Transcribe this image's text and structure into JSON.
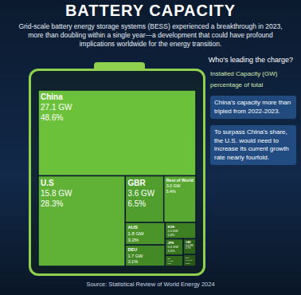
{
  "chart_data": {
    "type": "treemap",
    "title": "BATTERY CAPACITY",
    "subtitle": "Grid-scale battery energy storage systems (BESS) experienced a breakthrough in 2023, more than doubling within a single year—a development that could have profound implications worldwide for the energy transition.",
    "question": "Who's leading the charge?",
    "categories": [
      "China",
      "U.S",
      "GBR",
      "Rest of World",
      "AUS",
      "DEU",
      "KOR",
      "JPN",
      "IRL",
      "CAN",
      "ZAF"
    ],
    "values": [
      27.1,
      15.8,
      3.6,
      3.0,
      1.8,
      1.7,
      1.0,
      0.6,
      0.4,
      0.4,
      0.3
    ],
    "value_labels": [
      "27.1 GW",
      "15.8 GW",
      "3.6 GW",
      "3.0 GW",
      "1.8 GW",
      "1.7 GW",
      "1.0 GW",
      "0.6 GW",
      "0.4 GW",
      "0.4 GW",
      "0.3 GW"
    ],
    "share_labels": [
      "48.6%",
      "28.3%",
      "6.5%",
      "5.4%",
      "3.2%",
      "3.1%",
      "1.8%",
      "1.0%",
      "0.8%",
      "0.7%",
      "0.5%"
    ],
    "colors": [
      "#6cc13a",
      "#5fb236",
      "#4f9e2e",
      "#58a832",
      "#4a9429",
      "#438a26",
      "#3d7f22",
      "#37751f",
      "#326b1c",
      "#2d6219",
      "#285817"
    ],
    "data_labels": true,
    "value_caption": "Installed Capacity (GW)",
    "share_caption": "percentage of total",
    "annotations": [
      "China's capacity more than tripled from 2022-2023.",
      "To surpass China's share, the U.S. would need to increase its current growth rate nearly fourfold."
    ],
    "source": "Source: Statistical Review of World Energy 2024"
  }
}
